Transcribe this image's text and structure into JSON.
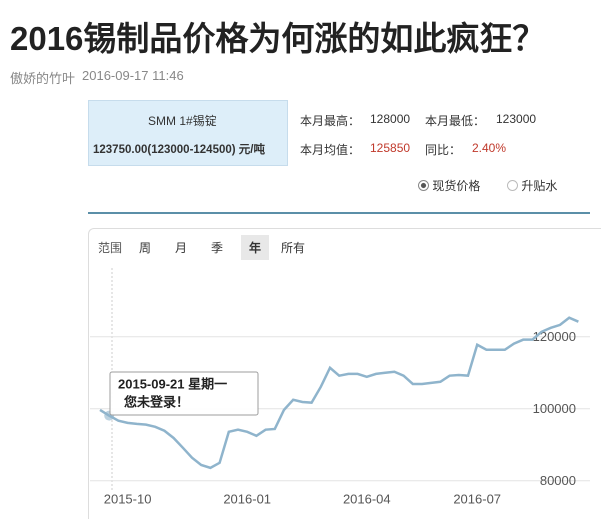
{
  "header": {
    "title": "2016锡制品价格为何涨的如此疯狂？",
    "author": "傲娇的竹叶",
    "date": "2016-09-17 11:46"
  },
  "info": {
    "name": "SMM 1#锡锭",
    "price": "123750.00(123000-124500) 元/吨",
    "rows": [
      [
        {
          "label": "本月最高：",
          "value": "128000"
        },
        {
          "label": "本月最低：",
          "value": "123000"
        }
      ],
      [
        {
          "label": "本月均值：",
          "value": "125850"
        },
        {
          "label": "同比：",
          "value": "2.40%"
        }
      ]
    ]
  },
  "options": [
    "现货价格",
    "升贴水"
  ],
  "ranges": {
    "label": "范围",
    "items": [
      "周",
      "月",
      "季",
      "年",
      "所有"
    ]
  },
  "chart_data": {
    "type": "line",
    "color": "#8fb4cc",
    "grid": true,
    "categories": [
      null,
      null,
      null,
      "2015-10",
      null,
      null,
      null,
      null,
      null,
      null,
      null,
      null,
      null,
      null,
      null,
      null,
      "2016-01",
      null,
      null,
      null,
      null,
      null,
      null,
      null,
      null,
      null,
      null,
      null,
      null,
      "2016-04",
      null,
      null,
      null,
      null,
      null,
      null,
      null,
      null,
      null,
      null,
      null,
      "2016-07",
      null,
      null,
      null,
      null,
      null,
      null,
      null,
      null,
      null,
      null,
      null
    ],
    "values": [
      99700,
      98100,
      96700,
      96100,
      95800,
      95600,
      95000,
      93900,
      91900,
      89200,
      86400,
      84400,
      83600,
      85000,
      93600,
      94200,
      93600,
      92500,
      94200,
      94400,
      99700,
      102500,
      101900,
      101700,
      106100,
      111400,
      109200,
      109700,
      109700,
      108900,
      109700,
      110000,
      110300,
      109200,
      106900,
      106900,
      107200,
      107500,
      109200,
      109400,
      109200,
      117800,
      116400,
      116400,
      116400,
      118100,
      119200,
      119200,
      121400,
      122500,
      123300,
      125300,
      124200
    ],
    "ylim": [
      78000,
      138000
    ],
    "yticks": [
      80000,
      100000,
      120000
    ],
    "tooltip": [
      "2015-09-21 星期一",
      "您未登录！"
    ]
  }
}
